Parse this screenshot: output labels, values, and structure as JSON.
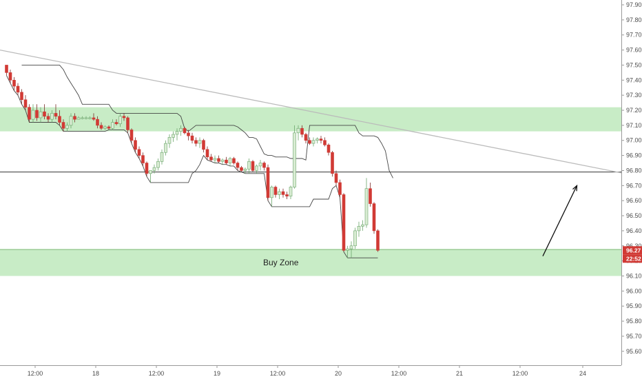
{
  "chart_data": {
    "type": "candlestick",
    "ylim": [
      95.54,
      97.95
    ],
    "y_ticks": [
      "97.90",
      "97.80",
      "97.70",
      "97.60",
      "97.50",
      "97.40",
      "97.30",
      "97.20",
      "97.10",
      "97.00",
      "96.90",
      "96.80",
      "96.70",
      "96.60",
      "96.50",
      "96.40",
      "96.30",
      "96.20",
      "96.10",
      "96.00",
      "95.90",
      "95.80",
      "95.70",
      "95.60"
    ],
    "x_ticks": [
      "12:00",
      "18",
      "12:00",
      "19",
      "12:00",
      "20",
      "12:00",
      "21",
      "12:00",
      "24"
    ],
    "price_badge": "96.27",
    "time_badge": "22:52",
    "colors": {
      "up": "#d9ecd3",
      "up_border": "#6aa56a",
      "down": "#d13a35",
      "zone": "#c8ecc6",
      "wick": "#555555",
      "trendline": "#bbbbbb",
      "hline": "#333333",
      "donchian": "#444444"
    },
    "zones": [
      {
        "from": 97.06,
        "to": 97.22,
        "label": ""
      },
      {
        "from": 96.1,
        "to": 96.28,
        "label": "Buy Zone"
      }
    ],
    "horizontal_line": 96.79,
    "trendline": {
      "from": [
        0,
        97.6
      ],
      "to": [
        191,
        96.65
      ]
    },
    "arrow": {
      "from": [
        142,
        96.25
      ],
      "to": [
        151,
        96.7
      ]
    },
    "candles": [
      [
        96.81,
        96.81,
        96.8,
        96.81
      ],
      [
        97.5,
        97.5,
        97.43,
        97.45
      ],
      [
        97.45,
        97.47,
        97.38,
        97.4
      ],
      [
        97.4,
        97.42,
        97.33,
        97.36
      ],
      [
        97.36,
        97.38,
        97.3,
        97.32
      ],
      [
        97.32,
        97.34,
        97.24,
        97.27
      ],
      [
        97.27,
        97.3,
        97.2,
        97.22
      ],
      [
        97.22,
        97.24,
        97.12,
        97.14
      ],
      [
        97.14,
        97.24,
        97.12,
        97.2
      ],
      [
        97.2,
        97.24,
        97.13,
        97.15
      ],
      [
        97.15,
        97.22,
        97.12,
        97.19
      ],
      [
        97.19,
        97.24,
        97.14,
        97.16
      ],
      [
        97.16,
        97.18,
        97.12,
        97.14
      ],
      [
        97.14,
        97.2,
        97.12,
        97.18
      ],
      [
        97.18,
        97.24,
        97.14,
        97.16
      ],
      [
        97.16,
        97.2,
        97.1,
        97.12
      ],
      [
        97.12,
        97.14,
        97.06,
        97.08
      ],
      [
        97.08,
        97.12,
        97.06,
        97.1
      ],
      [
        97.1,
        97.18,
        97.08,
        97.16
      ],
      [
        97.16,
        97.18,
        97.12,
        97.14
      ],
      [
        97.14,
        97.16,
        97.14,
        97.15
      ],
      [
        97.15,
        97.16,
        97.14,
        97.15
      ],
      [
        97.15,
        97.16,
        97.14,
        97.15
      ],
      [
        97.15,
        97.16,
        97.14,
        97.15
      ],
      [
        97.15,
        97.18,
        97.13,
        97.14
      ],
      [
        97.14,
        97.16,
        97.08,
        97.1
      ],
      [
        97.1,
        97.12,
        97.07,
        97.08
      ],
      [
        97.08,
        97.1,
        97.07,
        97.09
      ],
      [
        97.09,
        97.1,
        97.07,
        97.08
      ],
      [
        97.08,
        97.14,
        97.07,
        97.12
      ],
      [
        97.12,
        97.14,
        97.1,
        97.11
      ],
      [
        97.11,
        97.18,
        97.09,
        97.16
      ],
      [
        97.16,
        97.18,
        97.13,
        97.15
      ],
      [
        97.15,
        97.16,
        97.05,
        97.07
      ],
      [
        97.07,
        97.08,
        96.98,
        97.0
      ],
      [
        97.0,
        97.02,
        96.92,
        96.94
      ],
      [
        96.94,
        96.96,
        96.88,
        96.9
      ],
      [
        96.9,
        96.92,
        96.83,
        96.85
      ],
      [
        96.85,
        96.86,
        96.76,
        96.78
      ],
      [
        96.78,
        96.8,
        96.72,
        96.8
      ],
      [
        96.8,
        96.84,
        96.78,
        96.82
      ],
      [
        96.82,
        96.88,
        96.8,
        96.86
      ],
      [
        96.86,
        96.94,
        96.84,
        96.92
      ],
      [
        96.92,
        97.0,
        96.9,
        96.98
      ],
      [
        96.98,
        97.04,
        96.95,
        97.02
      ],
      [
        97.02,
        97.06,
        96.99,
        97.04
      ],
      [
        97.04,
        97.08,
        97.0,
        97.06
      ],
      [
        97.06,
        97.1,
        97.03,
        97.08
      ],
      [
        97.08,
        97.09,
        97.04,
        97.05
      ],
      [
        97.05,
        97.07,
        97.0,
        97.03
      ],
      [
        97.03,
        97.05,
        96.98,
        97.0
      ],
      [
        97.0,
        97.02,
        96.96,
        96.98
      ],
      [
        96.98,
        97.02,
        96.95,
        97.0
      ],
      [
        97.0,
        97.01,
        96.92,
        96.94
      ],
      [
        96.94,
        96.96,
        96.87,
        96.89
      ],
      [
        96.89,
        96.91,
        96.86,
        96.87
      ],
      [
        96.87,
        96.9,
        96.85,
        96.88
      ],
      [
        96.88,
        96.9,
        96.85,
        96.86
      ],
      [
        96.86,
        96.88,
        96.84,
        96.87
      ],
      [
        96.87,
        96.89,
        96.84,
        96.85
      ],
      [
        96.85,
        96.89,
        96.83,
        96.88
      ],
      [
        96.88,
        96.89,
        96.84,
        96.85
      ],
      [
        96.85,
        96.86,
        96.8,
        96.82
      ],
      [
        96.82,
        96.83,
        96.79,
        96.8
      ],
      [
        96.8,
        96.82,
        96.78,
        96.81
      ],
      [
        96.81,
        96.88,
        96.78,
        96.86
      ],
      [
        96.86,
        96.87,
        96.79,
        96.8
      ],
      [
        96.8,
        96.84,
        96.78,
        96.83
      ],
      [
        96.83,
        96.87,
        96.8,
        96.85
      ],
      [
        96.85,
        96.86,
        96.8,
        96.82
      ],
      [
        96.82,
        96.84,
        96.6,
        96.62
      ],
      [
        96.62,
        96.7,
        96.56,
        96.69
      ],
      [
        96.69,
        96.7,
        96.62,
        96.64
      ],
      [
        96.64,
        96.68,
        96.61,
        96.66
      ],
      [
        96.66,
        96.68,
        96.62,
        96.64
      ],
      [
        96.64,
        96.66,
        96.61,
        96.63
      ],
      [
        96.63,
        96.7,
        96.61,
        96.69
      ],
      [
        96.69,
        97.1,
        96.68,
        97.05
      ],
      [
        97.05,
        97.1,
        97.0,
        97.08
      ],
      [
        97.08,
        97.1,
        97.02,
        97.04
      ],
      [
        97.04,
        97.05,
        96.98,
        97.0
      ],
      [
        97.0,
        97.02,
        96.97,
        96.98
      ],
      [
        96.98,
        97.02,
        96.96,
        97.0
      ],
      [
        97.0,
        97.02,
        96.98,
        97.01
      ],
      [
        97.01,
        97.03,
        96.98,
        97.0
      ],
      [
        97.0,
        97.02,
        96.96,
        96.97
      ],
      [
        96.97,
        96.98,
        96.9,
        96.92
      ],
      [
        96.92,
        96.93,
        96.76,
        96.78
      ],
      [
        96.78,
        96.8,
        96.7,
        96.72
      ],
      [
        96.72,
        96.74,
        96.62,
        96.64
      ],
      [
        96.64,
        96.65,
        96.26,
        96.27
      ],
      [
        96.27,
        96.3,
        96.22,
        96.28
      ],
      [
        96.28,
        96.33,
        96.22,
        96.3
      ],
      [
        96.3,
        96.42,
        96.28,
        96.4
      ],
      [
        96.4,
        96.46,
        96.36,
        96.43
      ],
      [
        96.43,
        96.47,
        96.4,
        96.44
      ],
      [
        96.44,
        96.75,
        96.42,
        96.68
      ],
      [
        96.68,
        96.72,
        96.56,
        96.58
      ],
      [
        96.58,
        96.59,
        96.38,
        96.4
      ],
      [
        96.4,
        96.41,
        96.26,
        96.27
      ]
    ]
  },
  "buy_zone_label": "Buy Zone"
}
